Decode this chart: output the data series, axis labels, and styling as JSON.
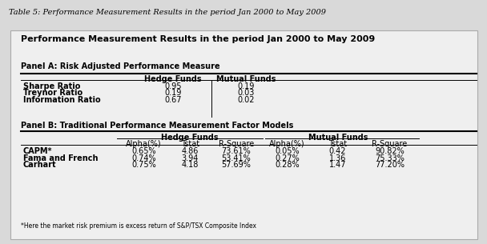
{
  "outer_title": "Table 5: Performance Measurement Results in the period Jan 2000 to May 2009",
  "inner_title": "Performance Measurement Results in the period Jan 2000 to May 2009",
  "panel_a_label": "Panel A: Risk Adjusted Performance Measure",
  "panel_a_col_headers": [
    "Hedge Funds",
    "Mutual Funds"
  ],
  "panel_a_rows": [
    [
      "Sharpe Ratio",
      "0.95",
      "0.19"
    ],
    [
      "Treynor Ratio",
      "0.19",
      "0.03"
    ],
    [
      "Information Ratio",
      "0.67",
      "0.02"
    ]
  ],
  "panel_b_label": "Panel B: Traditional Performance Measurement Factor Models",
  "panel_b_group_headers": [
    "Hedge Funds",
    "Mutual Funds"
  ],
  "panel_b_col_headers": [
    "Alpha(%)",
    "Tstat",
    "R-Square",
    "Alpha(%)",
    "Tstat",
    "R-Square"
  ],
  "panel_b_rows": [
    [
      "CAPM*",
      "0.65%",
      "4.86",
      "73.61%",
      "0.05%",
      "0.42",
      "90.82%"
    ],
    [
      "Fama and French",
      "0.74%",
      "3.94",
      "53.41%",
      "0.27%",
      "1.36",
      "75.33%"
    ],
    [
      "Carhart",
      "0.75%",
      "4.18",
      "57.69%",
      "0.28%",
      "1.47",
      "77.20%"
    ]
  ],
  "footnote": "*Here the market risk premium is excess return of S&P/TSX Composite Index",
  "bg_color": "#d9d9d9",
  "inner_bg": "#efefef",
  "text_color": "#000000",
  "outer_title_fontsize": 7.0,
  "inner_title_fontsize": 8.0,
  "panel_label_fontsize": 7.0,
  "header_fontsize": 7.0,
  "data_fontsize": 7.0,
  "footnote_fontsize": 5.5
}
